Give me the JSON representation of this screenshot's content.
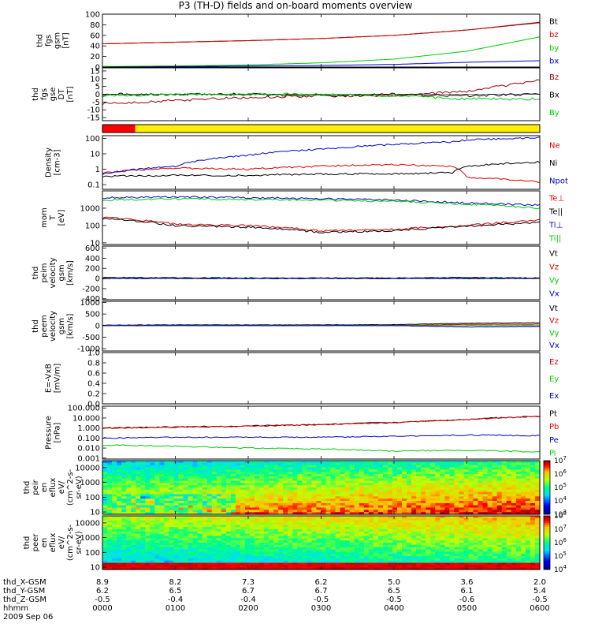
{
  "title": "P3 (TH-D) fields and on-board moments overview",
  "date": "2009 Sep 06",
  "time_axis": {
    "range_hhmm": [
      "0000",
      "0600"
    ],
    "ephemeris_labels": [
      "thd_X-GSM",
      "thd_Y-GSM",
      "thd_Z-GSM",
      "hhmm"
    ],
    "ticks": [
      {
        "x_gsm": "8.9",
        "y_gsm": "6.2",
        "z_gsm": "-0.5",
        "hhmm": "0000"
      },
      {
        "x_gsm": "8.2",
        "y_gsm": "6.5",
        "z_gsm": "-0.4",
        "hhmm": "0100"
      },
      {
        "x_gsm": "7.3",
        "y_gsm": "6.7",
        "z_gsm": "-0.4",
        "hhmm": "0200"
      },
      {
        "x_gsm": "6.2",
        "y_gsm": "6.7",
        "z_gsm": "-0.5",
        "hhmm": "0300"
      },
      {
        "x_gsm": "5.0",
        "y_gsm": "6.5",
        "z_gsm": "-0.5",
        "hhmm": "0400"
      },
      {
        "x_gsm": "3.6",
        "y_gsm": "6.1",
        "z_gsm": "-0.6",
        "hhmm": "0500"
      },
      {
        "x_gsm": "2.0",
        "y_gsm": "5.4",
        "z_gsm": "-0.5",
        "hhmm": "0600"
      }
    ]
  },
  "chart_data": [
    {
      "type": "line",
      "id": "fgs_gsm",
      "ylabel": [
        "thd",
        "fgs",
        "gsm",
        "[nT]"
      ],
      "yticks": [
        "0",
        "20",
        "40",
        "60",
        "80",
        "100"
      ],
      "ylim": [
        0,
        100
      ],
      "x_hours": [
        0,
        1,
        2,
        3,
        4,
        5,
        6
      ],
      "series": [
        {
          "name": "Bt",
          "color": "#000000",
          "values": [
            44,
            47,
            50,
            54,
            60,
            70,
            84
          ]
        },
        {
          "name": "bz",
          "color": "#dd0000",
          "values": [
            44,
            47,
            50,
            54,
            60,
            70,
            85
          ]
        },
        {
          "name": "by",
          "color": "#00cc00",
          "values": [
            1,
            2,
            4,
            8,
            15,
            30,
            57
          ]
        },
        {
          "name": "bx",
          "color": "#0000dd",
          "values": [
            0,
            1,
            2,
            3,
            5,
            9,
            12
          ]
        }
      ]
    },
    {
      "type": "line",
      "id": "fgs_gse_detrended",
      "ylabel": [
        "thd",
        "fgs",
        "gse",
        "DT",
        "[nT]"
      ],
      "yticks": [
        "-15",
        "-10",
        "-5",
        "0",
        "5",
        "10",
        "15"
      ],
      "ylim": [
        -17,
        17
      ],
      "x_hours": [
        0,
        1,
        2,
        3,
        4,
        5,
        6
      ],
      "series": [
        {
          "name": "Bz",
          "color": "#990000",
          "values": [
            -6,
            -4,
            -2,
            -1,
            -1,
            2,
            9
          ]
        },
        {
          "name": "Bx",
          "color": "#000000",
          "values": [
            0,
            0,
            0,
            -1,
            0,
            -1,
            0
          ]
        },
        {
          "name": "By",
          "color": "#00cc00",
          "values": [
            -1,
            0,
            0,
            0,
            -1,
            -3,
            -3
          ]
        }
      ]
    },
    {
      "type": "bar",
      "id": "mode_bar",
      "segments": [
        {
          "from_hours": 0,
          "to_hours": 0.45,
          "color": "#ff0000"
        },
        {
          "from_hours": 0.45,
          "to_hours": 6,
          "color": "#ffee00"
        }
      ]
    },
    {
      "type": "line",
      "id": "density",
      "scale": "log",
      "ylabel": [
        "Density",
        "[cm-3]"
      ],
      "yticks": [
        "0.1",
        "1",
        "10",
        "100"
      ],
      "ylim": [
        0.05,
        150
      ],
      "x_hours": [
        0,
        1,
        2,
        3,
        4,
        4.8,
        5,
        6
      ],
      "series": [
        {
          "name": "Ne",
          "color": "#dd0000",
          "values": [
            0.6,
            1.2,
            1.0,
            1.6,
            2.0,
            1.5,
            0.3,
            0.15
          ]
        },
        {
          "name": "Ni",
          "color": "#000000",
          "values": [
            0.35,
            0.4,
            0.4,
            0.5,
            0.5,
            0.6,
            1.5,
            3
          ]
        },
        {
          "name": "Npot",
          "color": "#0000cc",
          "values": [
            0.5,
            1.5,
            8,
            20,
            40,
            60,
            80,
            110
          ]
        }
      ]
    },
    {
      "type": "line",
      "id": "temperature",
      "scale": "log",
      "ylabel": [
        "mom",
        "T",
        "[eV]"
      ],
      "yticks": [
        "10",
        "100",
        "1000"
      ],
      "ylim": [
        8,
        10000
      ],
      "x_hours": [
        0,
        1,
        2,
        3,
        4,
        5,
        6
      ],
      "series": [
        {
          "name": "Te⊥",
          "color": "#dd0000",
          "values": [
            300,
            120,
            100,
            50,
            60,
            100,
            200
          ]
        },
        {
          "name": "Te||",
          "color": "#000000",
          "values": [
            250,
            100,
            80,
            40,
            50,
            90,
            150
          ]
        },
        {
          "name": "Ti⊥",
          "color": "#0000cc",
          "values": [
            4000,
            4500,
            4000,
            3500,
            3000,
            2000,
            1500
          ]
        },
        {
          "name": "Ti||",
          "color": "#00cc00",
          "values": [
            3000,
            3500,
            3200,
            3000,
            2500,
            1700,
            1000
          ]
        }
      ]
    },
    {
      "type": "line",
      "id": "peim_velocity",
      "ylabel": [
        "thd",
        "peim",
        "velocity",
        "gsm",
        "[km/s]"
      ],
      "yticks": [
        "-400",
        "-200",
        "0",
        "200",
        "400",
        "600"
      ],
      "ylim": [
        -420,
        640
      ],
      "x_hours": [
        0,
        1,
        2,
        3,
        4,
        5,
        6
      ],
      "series": [
        {
          "name": "Vt",
          "color": "#000000",
          "values": [
            20,
            15,
            10,
            10,
            10,
            20,
            10
          ]
        },
        {
          "name": "Vz",
          "color": "#dd0000",
          "values": [
            0,
            0,
            0,
            0,
            0,
            0,
            0
          ]
        },
        {
          "name": "Vy",
          "color": "#00cc00",
          "values": [
            0,
            0,
            0,
            0,
            0,
            0,
            0
          ]
        },
        {
          "name": "Vx",
          "color": "#0000cc",
          "values": [
            0,
            0,
            0,
            0,
            0,
            0,
            0
          ]
        }
      ]
    },
    {
      "type": "line",
      "id": "peem_velocity",
      "ylabel": [
        "thd",
        "peem",
        "velocity",
        "gsm",
        "[km/s]"
      ],
      "yticks": [
        "-1000",
        "-500",
        "0",
        "500",
        "1000"
      ],
      "ylim": [
        -1100,
        1050
      ],
      "x_hours": [
        0,
        1,
        2,
        3,
        4,
        5,
        6
      ],
      "series": [
        {
          "name": "Vt",
          "color": "#000000",
          "values": [
            20,
            30,
            30,
            30,
            40,
            100,
            120
          ]
        },
        {
          "name": "Vz",
          "color": "#dd0000",
          "values": [
            0,
            0,
            0,
            0,
            0,
            50,
            60
          ]
        },
        {
          "name": "Vy",
          "color": "#00cc00",
          "values": [
            0,
            0,
            0,
            0,
            0,
            0,
            0
          ]
        },
        {
          "name": "Vx",
          "color": "#0000cc",
          "values": [
            0,
            0,
            0,
            0,
            0,
            -60,
            -40
          ]
        }
      ]
    },
    {
      "type": "line",
      "id": "e_vxb",
      "ylabel": [
        "E=-VxB",
        "[mV/m]"
      ],
      "yticks": [
        "0.0",
        "0.2",
        "0.4",
        "0.6",
        "0.8",
        "1.0"
      ],
      "ylim": [
        0,
        1
      ],
      "series": [
        {
          "name": "Ez",
          "color": "#dd0000",
          "values": []
        },
        {
          "name": "Ey",
          "color": "#00cc00",
          "values": []
        },
        {
          "name": "Ex",
          "color": "#0000cc",
          "values": []
        }
      ]
    },
    {
      "type": "line",
      "id": "pressure",
      "scale": "log",
      "ylabel": [
        "Pressure",
        "[nPa]"
      ],
      "yticks": [
        "0.001",
        "0.010",
        "0.100",
        "1.000",
        "10.000",
        "100.000"
      ],
      "ylim": [
        0.0008,
        150
      ],
      "x_hours": [
        0,
        1,
        2,
        3,
        4,
        5,
        6
      ],
      "series": [
        {
          "name": "Pt",
          "color": "#000000",
          "values": [
            1.0,
            1.3,
            1.6,
            2.2,
            3.5,
            7,
            15
          ]
        },
        {
          "name": "Pb",
          "color": "#dd0000",
          "values": [
            0.95,
            1.2,
            1.5,
            2.1,
            3.4,
            6.8,
            14
          ]
        },
        {
          "name": "Pe",
          "color": "#0000cc",
          "values": [
            0.1,
            0.12,
            0.12,
            0.12,
            0.15,
            0.2,
            0.17
          ]
        },
        {
          "name": "Pi",
          "color": "#00cc00",
          "values": [
            0.02,
            0.015,
            0.01,
            0.008,
            0.005,
            0.006,
            0.004
          ]
        }
      ]
    },
    {
      "type": "heatmap",
      "id": "peir_en_eflux",
      "scale": "log",
      "ylabel": [
        "thd",
        "peir",
        "en",
        "eflux",
        "eV/",
        "(cm^2-s-",
        "sr-eV)"
      ],
      "yticks": [
        "10",
        "100",
        "1000",
        "10000"
      ],
      "ylim": [
        7,
        30000
      ],
      "colorbar_ticks": [
        "10^3",
        "10^4",
        "10^5",
        "10^6",
        "10^7"
      ],
      "zlim": [
        1000,
        10000000
      ]
    },
    {
      "type": "heatmap",
      "id": "peer_en_eflux",
      "scale": "log",
      "ylabel": [
        "thd",
        "peer",
        "en",
        "eflux",
        "eV/",
        "(cm^2-s-",
        "sr-eV)"
      ],
      "yticks": [
        "10",
        "100",
        "1000",
        "10000"
      ],
      "ylim": [
        7,
        30000
      ],
      "colorbar_ticks": [
        "10^4",
        "10^5",
        "10^6",
        "10^7",
        "10^8"
      ],
      "zlim": [
        10000,
        100000000
      ]
    }
  ]
}
